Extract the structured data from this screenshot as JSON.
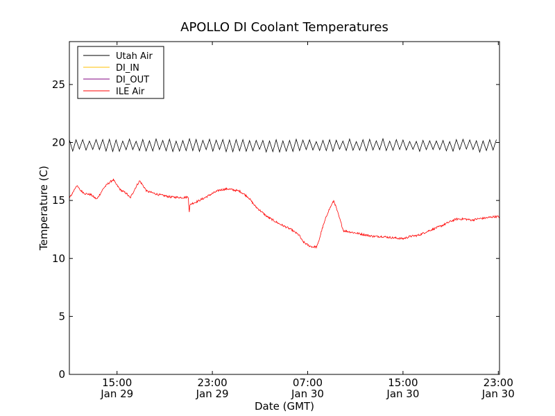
{
  "chart_data": {
    "type": "line",
    "title": "APOLLO DI Coolant Temperatures",
    "xlabel": "Date (GMT)",
    "ylabel": "Temperature (C)",
    "x_unit": "hours since Jan 29 00:00 GMT",
    "xlim": [
      11.0,
      47.1
    ],
    "ylim": [
      0,
      28.7
    ],
    "yticks": [
      0,
      5,
      10,
      15,
      20,
      25
    ],
    "xticks": [
      {
        "value": 15,
        "time": "15:00",
        "date": "Jan 29"
      },
      {
        "value": 23,
        "time": "23:00",
        "date": "Jan 29"
      },
      {
        "value": 31,
        "time": "07:00",
        "date": "Jan 30"
      },
      {
        "value": 39,
        "time": "15:00",
        "date": "Jan 30"
      },
      {
        "value": 47,
        "time": "23:00",
        "date": "Jan 30"
      }
    ],
    "grid": false,
    "legend_position": "top-left",
    "series": [
      {
        "name": "Utah Air",
        "color": "#000000",
        "style": "oscillating",
        "range": [
          19.3,
          20.2
        ],
        "period_hours": 0.56,
        "x": [
          11.0,
          47.1
        ],
        "y": [
          19.7,
          19.7
        ]
      },
      {
        "name": "DI_IN",
        "color": "#ffbf00",
        "x": [],
        "y": []
      },
      {
        "name": "DI_OUT",
        "color": "#800080",
        "x": [],
        "y": []
      },
      {
        "name": "ILE Air",
        "color": "#ff0000",
        "style": "noisy",
        "x": [
          11.0,
          11.3,
          11.6,
          11.9,
          12.3,
          12.8,
          13.3,
          13.6,
          13.9,
          14.3,
          14.7,
          14.85,
          15.3,
          15.8,
          16.1,
          16.3,
          16.6,
          16.9,
          17.5,
          18.5,
          19.5,
          20.5,
          21.0,
          21.05,
          21.1,
          21.2,
          21.7,
          22.3,
          23.0,
          23.6,
          24.3,
          24.8,
          25.3,
          26.0,
          26.6,
          27.6,
          28.6,
          29.6,
          30.3,
          30.45,
          30.55,
          30.8,
          31.1,
          31.4,
          31.6,
          31.75,
          31.85,
          32.2,
          32.7,
          33.2,
          34.0,
          35.0,
          36.0,
          36.5,
          37.2,
          38.0,
          39.0,
          39.6,
          40.3,
          41.2,
          42.2,
          43.0,
          43.5,
          44.2,
          44.8,
          45.2,
          46.0,
          46.6,
          47.1
        ],
        "y": [
          15.2,
          15.7,
          16.3,
          15.9,
          15.6,
          15.5,
          15.1,
          15.6,
          16.1,
          16.5,
          16.8,
          16.5,
          15.9,
          15.6,
          15.2,
          15.6,
          16.2,
          16.7,
          15.8,
          15.5,
          15.3,
          15.25,
          15.3,
          13.8,
          14.5,
          14.7,
          14.9,
          15.2,
          15.6,
          15.9,
          16.0,
          15.9,
          15.8,
          15.3,
          14.5,
          13.6,
          13.0,
          12.5,
          12.0,
          11.7,
          11.5,
          11.3,
          11.1,
          11.0,
          11.0,
          11.0,
          11.2,
          12.5,
          14.0,
          15.0,
          12.4,
          12.2,
          12.0,
          11.9,
          11.9,
          11.8,
          11.7,
          11.9,
          12.0,
          12.4,
          12.8,
          13.2,
          13.4,
          13.4,
          13.3,
          13.4,
          13.5,
          13.6,
          13.6
        ]
      }
    ]
  }
}
